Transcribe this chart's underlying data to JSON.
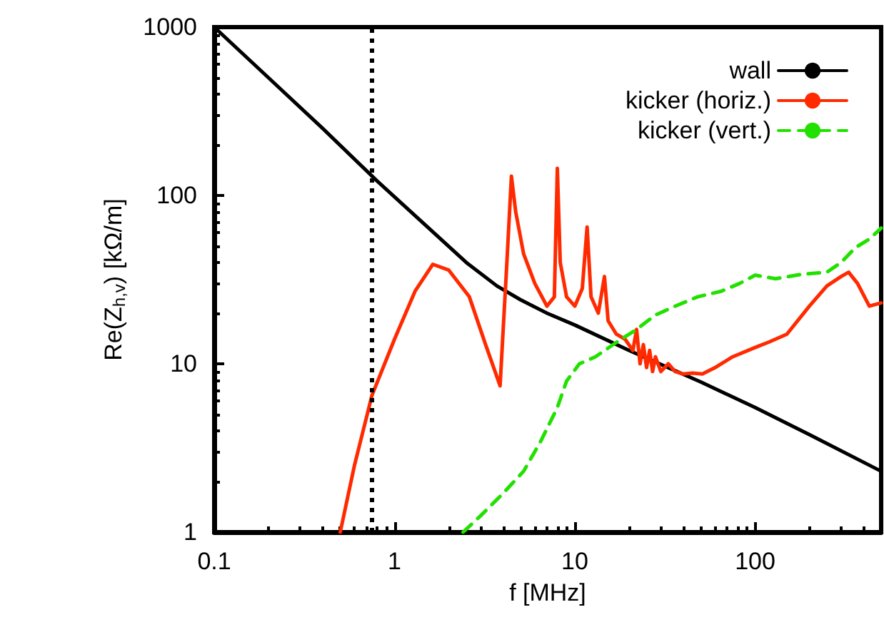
{
  "chart_data": {
    "type": "line",
    "xlabel": "f [MHz]",
    "ylabel": "Re(Z$_{h,v}$) [kΩ/m]",
    "log": "xy",
    "xlim": [
      0.1,
      500
    ],
    "ylim": [
      1,
      1000
    ],
    "xticks": [
      0.1,
      1,
      10,
      100
    ],
    "yticks": [
      1,
      10,
      100,
      1000
    ],
    "grid": false,
    "legend": "top right",
    "marker": "none",
    "ref_lines": [
      {
        "axis": "x",
        "value": 0.75,
        "color": "#000000",
        "line_style": "dotted"
      }
    ],
    "series": [
      {
        "name": "wall",
        "color": "#000000",
        "line_style": "solid",
        "x": [
          0.1,
          0.2,
          0.4,
          0.8,
          1.5,
          2.5,
          3.7,
          5,
          7,
          10,
          20,
          50,
          100,
          200,
          500
        ],
        "values": [
          1000,
          500,
          250,
          122,
          66,
          40,
          29,
          24,
          20,
          17,
          12,
          7.8,
          5.5,
          3.8,
          2.3
        ]
      },
      {
        "name": "kicker (horiz.)",
        "color": "#ff2a00",
        "line_style": "solid",
        "x": [
          0.5,
          0.6,
          0.75,
          1.0,
          1.3,
          1.63,
          2.0,
          2.6,
          3.2,
          3.85,
          4.2,
          4.45,
          4.7,
          5.2,
          6,
          7,
          7.7,
          8.0,
          8.3,
          9,
          10,
          11,
          11.7,
          12.3,
          13.5,
          14.6,
          15.3,
          17,
          19,
          21,
          22,
          23,
          24,
          25,
          26,
          27,
          28,
          30,
          33,
          36,
          40,
          45,
          51,
          60,
          75,
          100,
          120,
          150,
          200,
          250,
          300,
          330,
          370,
          430,
          500
        ],
        "values": [
          1,
          2.5,
          6.5,
          14,
          27,
          39,
          36,
          25,
          13,
          7.4,
          40,
          130,
          80,
          45,
          30,
          22,
          25,
          145,
          40,
          25,
          22,
          28,
          65,
          25,
          20,
          33,
          18,
          15,
          14,
          12,
          16,
          10,
          13,
          9.5,
          12,
          9,
          11,
          9,
          10,
          9,
          8.7,
          8.8,
          8.7,
          9.5,
          11,
          12.5,
          13.5,
          15,
          22,
          29,
          33,
          35,
          30,
          22,
          23
        ]
      },
      {
        "name": "kicker (vert.)",
        "color": "#22e000",
        "line_style": "dashed",
        "x": [
          2.4,
          3,
          4,
          5.2,
          6.5,
          8,
          9,
          10.6,
          13,
          17,
          22,
          28,
          36,
          48,
          65,
          82,
          100,
          130,
          180,
          250,
          300,
          360,
          430,
          500
        ],
        "values": [
          1,
          1.25,
          1.7,
          2.3,
          3.5,
          5.5,
          7.9,
          10,
          11,
          13.4,
          16,
          19.5,
          22,
          25,
          27,
          30,
          33.6,
          32,
          34,
          35,
          40,
          49,
          55,
          64
        ]
      }
    ]
  }
}
